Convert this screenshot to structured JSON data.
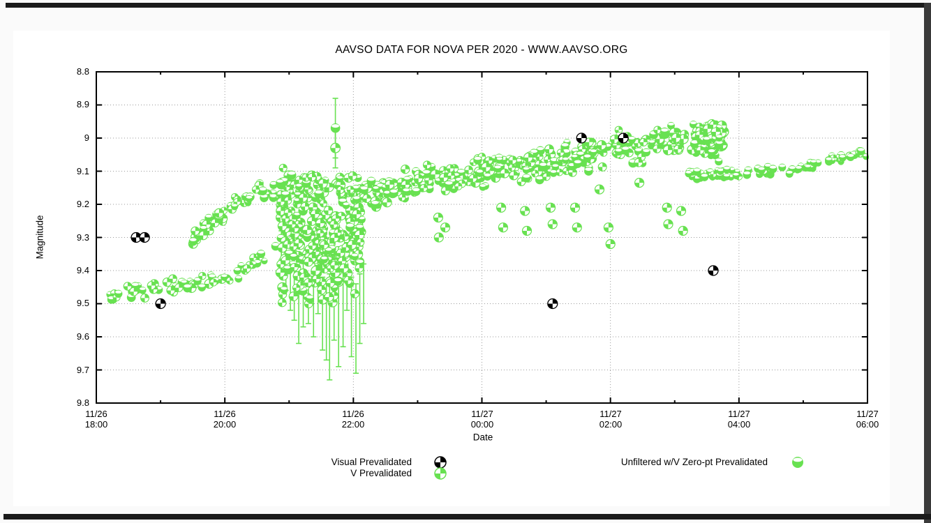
{
  "window": {
    "background": "#fafafa",
    "panel_background": "#ffffff",
    "frame_color": "#1b1b1b"
  },
  "chart_data": {
    "type": "scatter",
    "title": "AAVSO DATA FOR NOVA PER 2020 - WWW.AAVSO.ORG",
    "xlabel": "Date",
    "ylabel": "Magnitude",
    "y_axis": {
      "min": 8.8,
      "max": 9.8,
      "inverted": true,
      "tick_step": 0.1,
      "tick_labels": [
        "8.8",
        "8.9",
        "9",
        "9.1",
        "9.2",
        "9.3",
        "9.4",
        "9.5",
        "9.6",
        "9.7",
        "9.8"
      ]
    },
    "x_axis": {
      "span_hours": 12,
      "major_ticks": [
        {
          "hour": 0,
          "date": "11/26",
          "time": "18:00"
        },
        {
          "hour": 2,
          "date": "11/26",
          "time": "20:00"
        },
        {
          "hour": 4,
          "date": "11/26",
          "time": "22:00"
        },
        {
          "hour": 6,
          "date": "11/27",
          "time": "00:00"
        },
        {
          "hour": 8,
          "date": "11/27",
          "time": "02:00"
        },
        {
          "hour": 10,
          "date": "11/27",
          "time": "04:00"
        },
        {
          "hour": 12,
          "date": "11/27",
          "time": "06:00"
        }
      ],
      "minor_tick_hours": [
        1,
        3,
        5,
        7,
        9,
        11
      ]
    },
    "grid": {
      "style": "dotted",
      "color": "#9a9a9a"
    },
    "colors": {
      "visual": "#000000",
      "green": "#68e151"
    },
    "legend": [
      {
        "label": "Visual Prevalidated",
        "symbol": "quartered-circle-black",
        "series": "visual"
      },
      {
        "label": "V Prevalidated",
        "symbol": "quartered-circle-green",
        "series": "v"
      },
      {
        "label": "Unfiltered w/V Zero-pt Prevalidated",
        "symbol": "half-open-circle-green",
        "series": "unfiltered"
      }
    ],
    "series": {
      "visual_points": [
        [
          0.62,
          9.3
        ],
        [
          0.75,
          9.3
        ],
        [
          1.0,
          9.5
        ],
        [
          7.1,
          9.5
        ],
        [
          7.55,
          9.0
        ],
        [
          8.2,
          9.0
        ],
        [
          9.6,
          9.4
        ]
      ],
      "v_high_outliers": [
        [
          3.72,
          8.97
        ],
        [
          3.72,
          9.03
        ]
      ],
      "v_discrete_points": [
        [
          5.32,
          9.24
        ],
        [
          5.33,
          9.3
        ],
        [
          5.43,
          9.27
        ],
        [
          6.3,
          9.21
        ],
        [
          6.33,
          9.27
        ],
        [
          6.67,
          9.22
        ],
        [
          6.7,
          9.28
        ],
        [
          7.07,
          9.21
        ],
        [
          7.1,
          9.26
        ],
        [
          7.45,
          9.21
        ],
        [
          7.48,
          9.27
        ],
        [
          7.83,
          9.155
        ],
        [
          7.97,
          9.27
        ],
        [
          8.0,
          9.32
        ],
        [
          8.45,
          9.135
        ],
        [
          8.88,
          9.21
        ],
        [
          8.9,
          9.26
        ],
        [
          9.1,
          9.22
        ],
        [
          9.13,
          9.28
        ]
      ],
      "error_bars": [
        [
          3.72,
          8.88,
          9.06
        ],
        [
          3.72,
          8.98,
          9.09
        ],
        [
          2.88,
          9.28,
          9.4
        ],
        [
          2.95,
          9.32,
          9.46
        ],
        [
          3.02,
          9.36,
          9.52
        ],
        [
          3.08,
          9.34,
          9.55
        ],
        [
          3.15,
          9.4,
          9.62
        ],
        [
          3.22,
          9.37,
          9.57
        ],
        [
          3.3,
          9.43,
          9.56
        ],
        [
          3.38,
          9.41,
          9.6
        ],
        [
          3.45,
          9.36,
          9.53
        ],
        [
          3.52,
          9.42,
          9.64
        ],
        [
          3.58,
          9.44,
          9.67
        ],
        [
          3.63,
          9.41,
          9.73
        ],
        [
          3.7,
          9.39,
          9.61
        ],
        [
          3.77,
          9.44,
          9.69
        ],
        [
          3.84,
          9.4,
          9.63
        ],
        [
          3.9,
          9.33,
          9.52
        ],
        [
          3.97,
          9.42,
          9.66
        ],
        [
          4.04,
          9.44,
          9.71
        ],
        [
          4.1,
          9.41,
          9.62
        ],
        [
          4.16,
          9.38,
          9.56
        ]
      ],
      "bands": [
        {
          "name": "lower-branch",
          "anchors": [
            [
              0.2,
              9.472
            ],
            [
              0.7,
              9.462
            ],
            [
              1.05,
              9.452
            ],
            [
              1.45,
              9.44
            ],
            [
              1.85,
              9.425
            ],
            [
              2.2,
              9.405
            ],
            [
              2.5,
              9.375
            ],
            [
              2.72,
              9.345
            ],
            [
              2.82,
              9.32
            ]
          ],
          "halfwidth": 0.018,
          "count": 62,
          "r": 5.6,
          "open_ratio": 0.5,
          "gauss": false
        },
        {
          "name": "upper-branch",
          "anchors": [
            [
              1.49,
              9.315
            ],
            [
              1.7,
              9.27
            ],
            [
              1.95,
              9.225
            ],
            [
              2.2,
              9.19
            ],
            [
              2.45,
              9.17
            ],
            [
              2.7,
              9.158
            ],
            [
              2.88,
              9.15
            ]
          ],
          "halfwidth": 0.02,
          "count": 56,
          "r": 5.6,
          "open_ratio": 0.5,
          "gauss": false
        },
        {
          "name": "dense-blob",
          "anchors": [
            [
              2.85,
              9.29
            ],
            [
              3.0,
              9.31
            ],
            [
              3.2,
              9.33
            ],
            [
              3.4,
              9.34
            ],
            [
              3.6,
              9.335
            ],
            [
              3.8,
              9.31
            ],
            [
              3.95,
              9.325
            ],
            [
              4.12,
              9.315
            ]
          ],
          "halfwidth": 0.075,
          "count": 280,
          "r": 6.0,
          "open_ratio": 0.2,
          "gauss": true,
          "clamp": [
            9.16,
            9.505
          ]
        },
        {
          "name": "main-band",
          "anchors": [
            [
              2.82,
              9.155
            ],
            [
              3.2,
              9.148
            ],
            [
              3.6,
              9.15
            ],
            [
              4.0,
              9.16
            ],
            [
              4.3,
              9.165
            ],
            [
              4.6,
              9.155
            ],
            [
              5.0,
              9.135
            ],
            [
              5.5,
              9.118
            ],
            [
              6.0,
              9.103
            ],
            [
              6.5,
              9.088
            ],
            [
              7.0,
              9.072
            ],
            [
              7.5,
              9.056
            ],
            [
              8.0,
              9.04
            ],
            [
              8.5,
              9.023
            ],
            [
              9.0,
              9.006
            ],
            [
              9.4,
              8.997
            ],
            [
              9.75,
              9.0
            ]
          ],
          "halfwidth": 0.035,
          "count": 440,
          "r": 5.8,
          "open_ratio": 0.5,
          "gauss": false
        },
        {
          "name": "end-clump",
          "anchors": [
            [
              9.4,
              9.012
            ],
            [
              9.6,
              9.002
            ],
            [
              9.77,
              9.0
            ]
          ],
          "halfwidth": 0.04,
          "count": 60,
          "r": 6.0,
          "open_ratio": 0.5,
          "gauss": false
        },
        {
          "name": "late-line",
          "anchors": [
            [
              9.2,
              9.115
            ],
            [
              9.6,
              9.11
            ],
            [
              10.0,
              9.105
            ],
            [
              10.45,
              9.1
            ],
            [
              10.8,
              9.098
            ],
            [
              11.05,
              9.09
            ],
            [
              11.3,
              9.07
            ],
            [
              11.6,
              9.057
            ],
            [
              11.85,
              9.048
            ],
            [
              11.98,
              9.042
            ]
          ],
          "halfwidth": 0.01,
          "count": 92,
          "r": 5.2,
          "open_ratio": 0.85,
          "gauss": false
        }
      ]
    }
  }
}
